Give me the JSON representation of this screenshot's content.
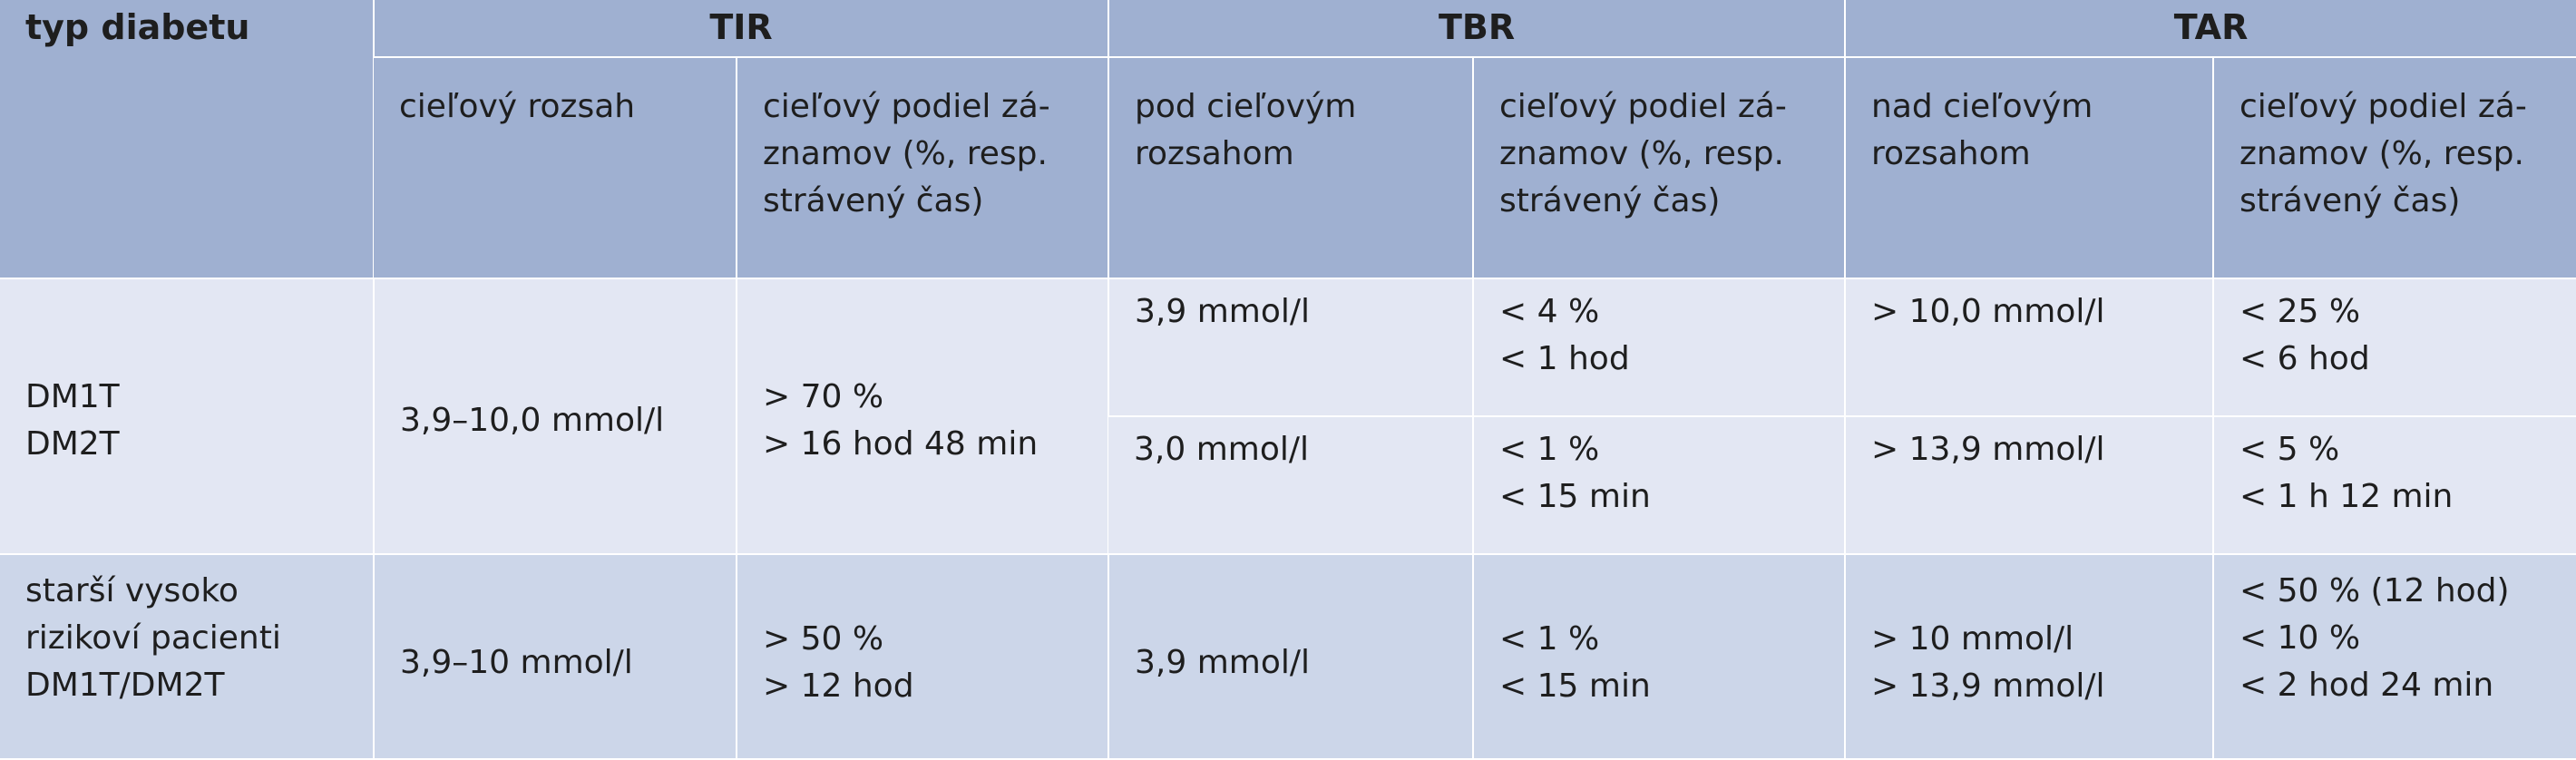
{
  "table": {
    "corner_label": "typ diabetu",
    "groups": [
      {
        "title": "TIR"
      },
      {
        "title": "TBR"
      },
      {
        "title": "TAR"
      }
    ],
    "subheaders": {
      "tir_range": "cieľový rozsah",
      "tir_share": [
        "cieľový podiel zá-",
        "znamov (%, resp.",
        "strávený čas)"
      ],
      "tbr_range": [
        "pod cieľovým",
        "rozsahom"
      ],
      "tbr_share": [
        "cieľový podiel zá-",
        "znamov (%, resp.",
        "strávený čas)"
      ],
      "tar_range": [
        "nad cieľovým",
        "rozsahom"
      ],
      "tar_share": [
        "cieľový podiel zá-",
        "znamov (%, resp.",
        "strávený čas)"
      ]
    },
    "rows": [
      {
        "type": [
          "DM1T",
          "DM2T"
        ],
        "tir_range": "3,9–10,0 mmol/l",
        "tir_share": [
          "> 70 %",
          "> 16 hod 48 min"
        ],
        "sub": [
          {
            "tbr_range": "3,9 mmol/l",
            "tbr_share": [
              "< 4 %",
              "< 1 hod"
            ],
            "tar_range": "> 10,0 mmol/l",
            "tar_share": [
              "< 25 %",
              "< 6 hod"
            ]
          },
          {
            "tbr_range": "3,0 mmol/l",
            "tbr_share": [
              "< 1 %",
              "< 15 min"
            ],
            "tar_range": "> 13,9 mmol/l",
            "tar_share": [
              "< 5 %",
              "< 1 h 12 min"
            ]
          }
        ]
      },
      {
        "type": [
          "starší vysoko",
          "rizikoví pacienti",
          "DM1T/DM2T"
        ],
        "tir_range": "3,9–10 mmol/l",
        "tir_share": [
          "> 50 %",
          "> 12 hod"
        ],
        "tbr_range": "3,9 mmol/l",
        "tbr_share": [
          "< 1 %",
          "< 15 min"
        ],
        "tar_range": [
          "> 10 mmol/l",
          "> 13,9 mmol/l"
        ],
        "tar_share": [
          "< 50 % (12 hod)",
          "< 10 %",
          "< 2 hod 24 min"
        ]
      }
    ]
  }
}
